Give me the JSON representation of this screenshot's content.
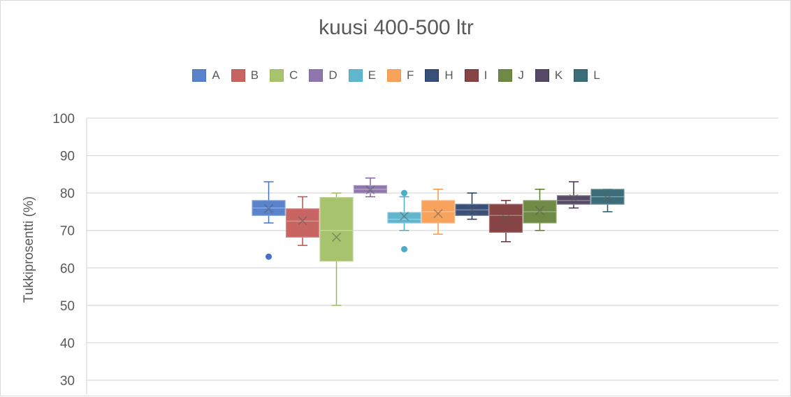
{
  "chart_data": {
    "type": "box",
    "title": "kuusi 400-500 ltr",
    "ylabel": "Tukkiprosentti (%)",
    "xlabel": "",
    "ylim": [
      30,
      100
    ],
    "yticks": [
      100,
      90,
      80,
      70,
      60,
      50,
      40,
      30
    ],
    "grid": true,
    "legend_position": "top",
    "series": [
      {
        "name": "A",
        "color": "#4472c4",
        "min": 72,
        "q1": 74,
        "median": 76,
        "q3": 78,
        "max": 83,
        "mean": 75.8,
        "outliers": [
          63
        ]
      },
      {
        "name": "B",
        "color": "#c0504d",
        "min": 66,
        "q1": 68.2,
        "median": 72.5,
        "q3": 75.8,
        "max": 79,
        "mean": 72.6,
        "outliers": []
      },
      {
        "name": "C",
        "color": "#9bbb59",
        "min": 50,
        "q1": 61.8,
        "median": 70,
        "q3": 78.8,
        "max": 80,
        "mean": 68.2,
        "outliers": []
      },
      {
        "name": "D",
        "color": "#8064a2",
        "min": 79,
        "q1": 80,
        "median": 81,
        "q3": 82,
        "max": 84,
        "mean": 80.8,
        "outliers": []
      },
      {
        "name": "E",
        "color": "#4bacc6",
        "min": 70,
        "q1": 72,
        "median": 73,
        "q3": 74.8,
        "max": 79,
        "mean": 73.8,
        "outliers": [
          80,
          65
        ]
      },
      {
        "name": "F",
        "color": "#f79646",
        "min": 69,
        "q1": 72,
        "median": 75,
        "q3": 78,
        "max": 81,
        "mean": 74.5,
        "outliers": []
      },
      {
        "name": "H",
        "color": "#1f3864",
        "min": 73,
        "q1": 74,
        "median": 75.5,
        "q3": 77,
        "max": 80,
        "mean": 75.5,
        "outliers": []
      },
      {
        "name": "I",
        "color": "#772b2b",
        "min": 67,
        "q1": 69.5,
        "median": 74,
        "q3": 77,
        "max": 78,
        "mean": 73.2,
        "outliers": []
      },
      {
        "name": "J",
        "color": "#5b7a2b",
        "min": 70,
        "q1": 72,
        "median": 75,
        "q3": 78,
        "max": 81,
        "mean": 75.3,
        "outliers": []
      },
      {
        "name": "K",
        "color": "#3f3151",
        "min": 76,
        "q1": 77,
        "median": 78,
        "q3": 79.3,
        "max": 83,
        "mean": 78.5,
        "outliers": []
      },
      {
        "name": "L",
        "color": "#215967",
        "min": 75,
        "q1": 77,
        "median": 79,
        "q3": 81,
        "max": 81,
        "mean": 78.5,
        "outliers": []
      }
    ]
  }
}
